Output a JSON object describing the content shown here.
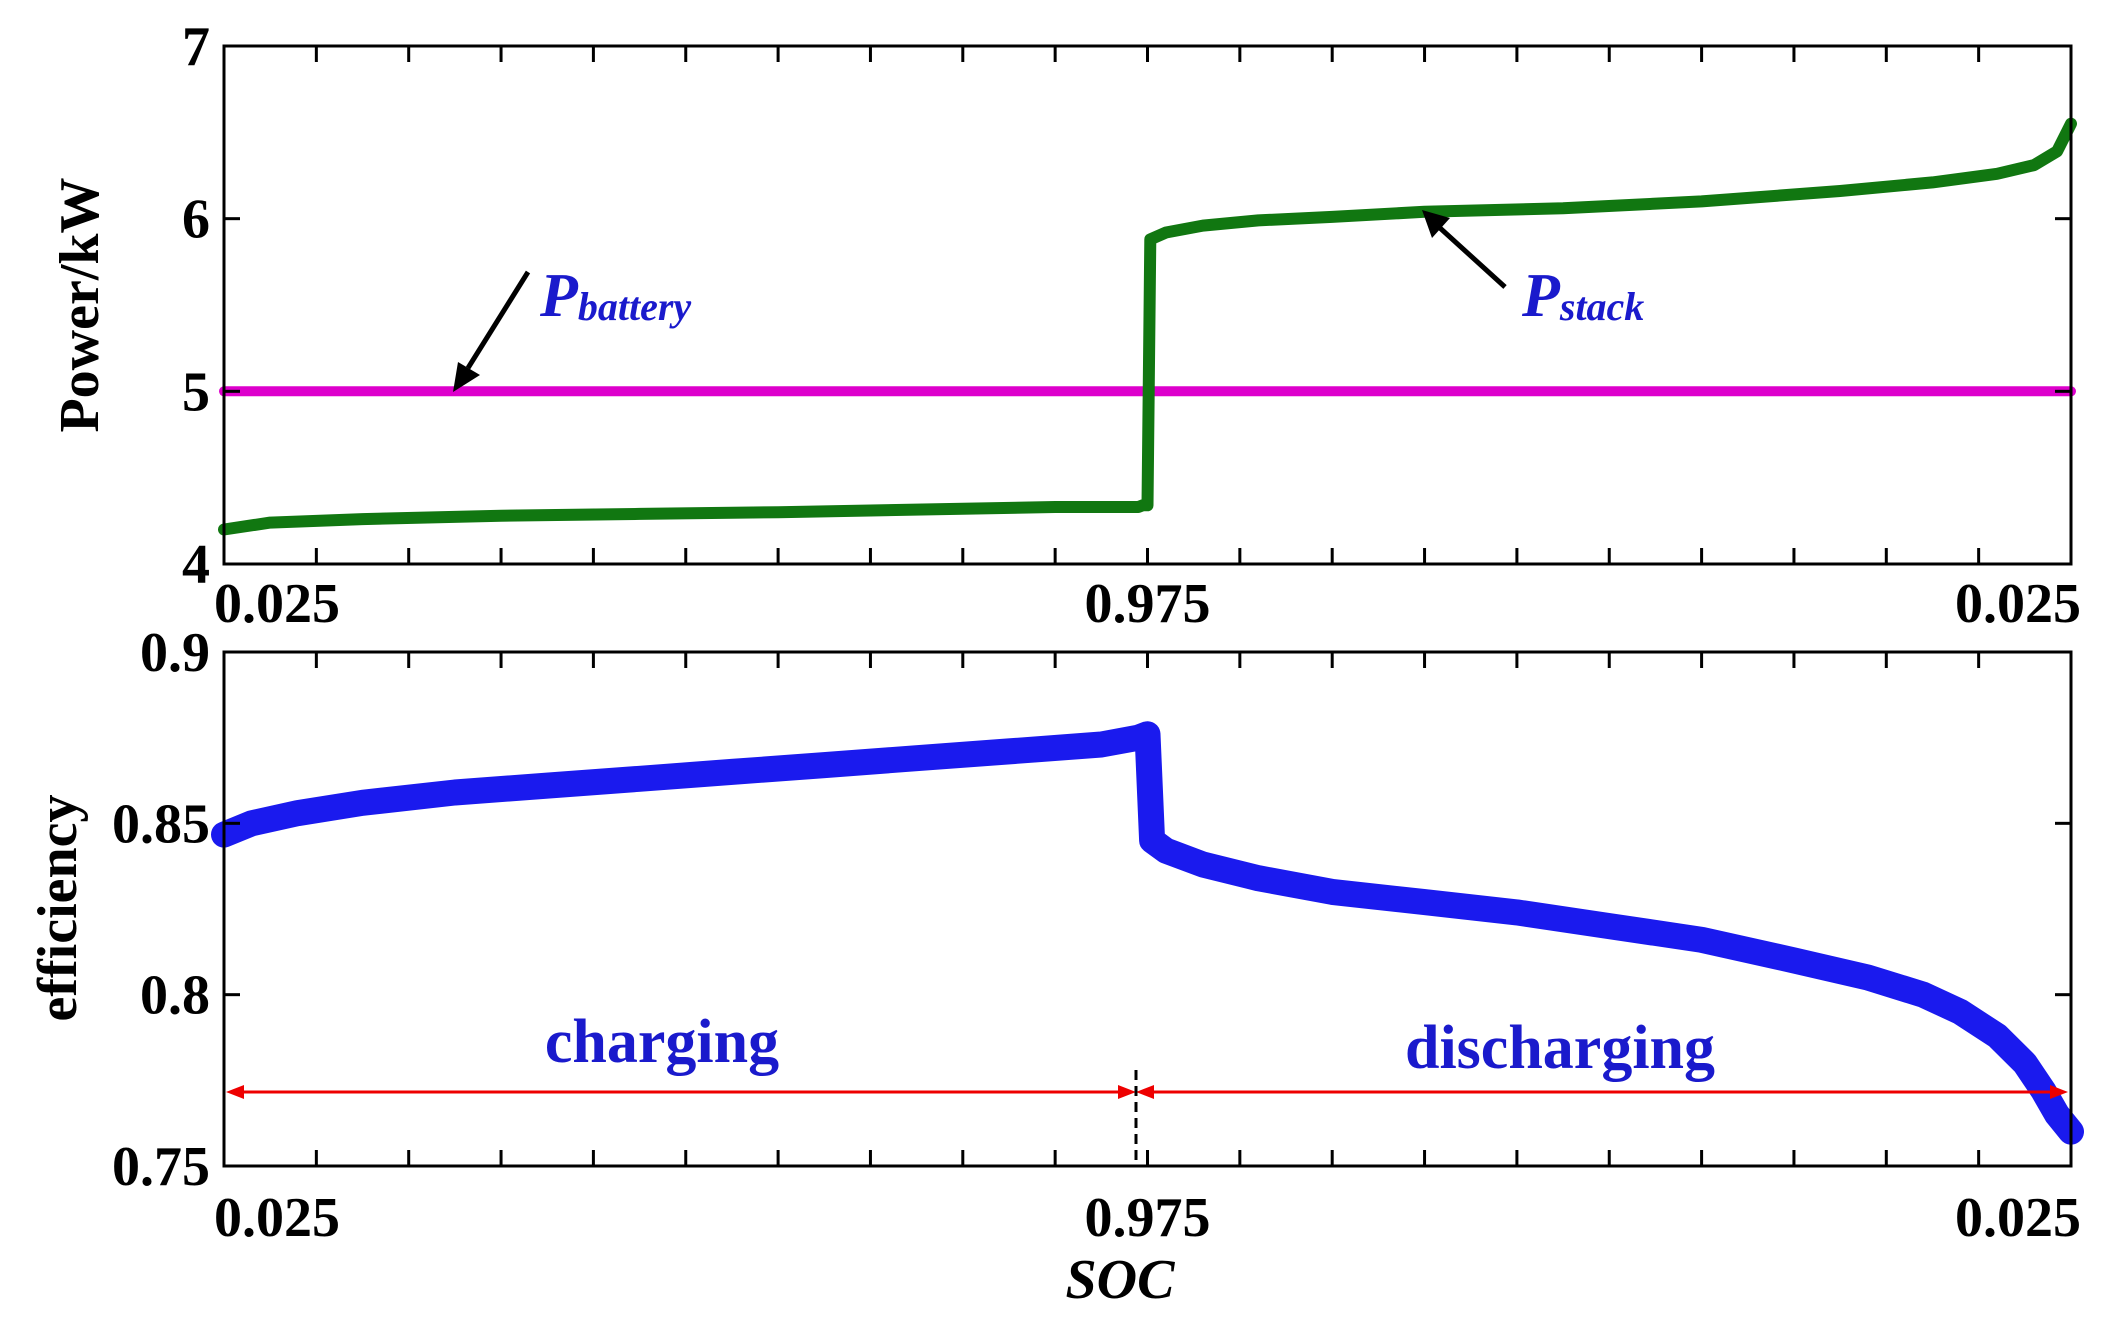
{
  "chart_data": [
    {
      "type": "line",
      "ylabel": "Power/kW",
      "ylim": [
        4,
        7
      ],
      "yticks": [
        "4",
        "5",
        "6",
        "7"
      ],
      "xticks": [
        "0.025",
        "0.975",
        "0.025"
      ],
      "x_domain": [
        0,
        2
      ],
      "grid": false,
      "series": [
        {
          "name": "Pbattery",
          "color": "#dd00cc",
          "x": [
            0,
            2
          ],
          "y": [
            5.0,
            5.0
          ]
        },
        {
          "name": "Pstack",
          "color": "#117711",
          "x": [
            0,
            0.05,
            0.15,
            0.3,
            0.45,
            0.6,
            0.7,
            0.8,
            0.9,
            0.99,
            0.995,
            1.0,
            1.003,
            1.02,
            1.06,
            1.12,
            1.2,
            1.3,
            1.45,
            1.6,
            1.75,
            1.85,
            1.92,
            1.96,
            1.985,
            2.0
          ],
          "y": [
            4.2,
            4.24,
            4.26,
            4.28,
            4.29,
            4.3,
            4.31,
            4.32,
            4.33,
            4.33,
            4.34,
            4.34,
            5.88,
            5.92,
            5.96,
            5.99,
            6.01,
            6.04,
            6.06,
            6.1,
            6.16,
            6.21,
            6.26,
            6.31,
            6.39,
            6.55
          ]
        }
      ],
      "annotations": [
        {
          "label": "P",
          "subscript": "battery",
          "color": "#1a1acc"
        },
        {
          "label": "P",
          "subscript": "stack",
          "color": "#1a1acc"
        }
      ]
    },
    {
      "type": "line",
      "ylabel": "efficiency",
      "xlabel": "SOC",
      "ylim": [
        0.75,
        0.9
      ],
      "yticks": [
        "0.75",
        "0.8",
        "0.85",
        "0.9"
      ],
      "xticks": [
        "0.025",
        "0.975",
        "0.025"
      ],
      "x_domain": [
        0,
        2
      ],
      "grid": false,
      "series": [
        {
          "name": "efficiency",
          "color": "#1a1aee",
          "x": [
            0,
            0.03,
            0.08,
            0.15,
            0.25,
            0.35,
            0.45,
            0.55,
            0.65,
            0.75,
            0.85,
            0.95,
            0.99,
            1.0,
            1.005,
            1.02,
            1.06,
            1.12,
            1.2,
            1.3,
            1.4,
            1.5,
            1.6,
            1.7,
            1.78,
            1.84,
            1.88,
            1.92,
            1.95,
            1.97,
            1.985,
            2.0
          ],
          "y": [
            0.8467,
            0.85,
            0.853,
            0.856,
            0.859,
            0.861,
            0.863,
            0.865,
            0.867,
            0.869,
            0.871,
            0.873,
            0.875,
            0.876,
            0.845,
            0.842,
            0.838,
            0.834,
            0.83,
            0.827,
            0.824,
            0.82,
            0.816,
            0.81,
            0.805,
            0.8,
            0.795,
            0.788,
            0.78,
            0.772,
            0.765,
            0.76
          ]
        }
      ],
      "annotations": [
        {
          "label": "charging",
          "color": "#1a1acc"
        },
        {
          "label": "discharging",
          "color": "#1a1acc"
        }
      ]
    }
  ]
}
